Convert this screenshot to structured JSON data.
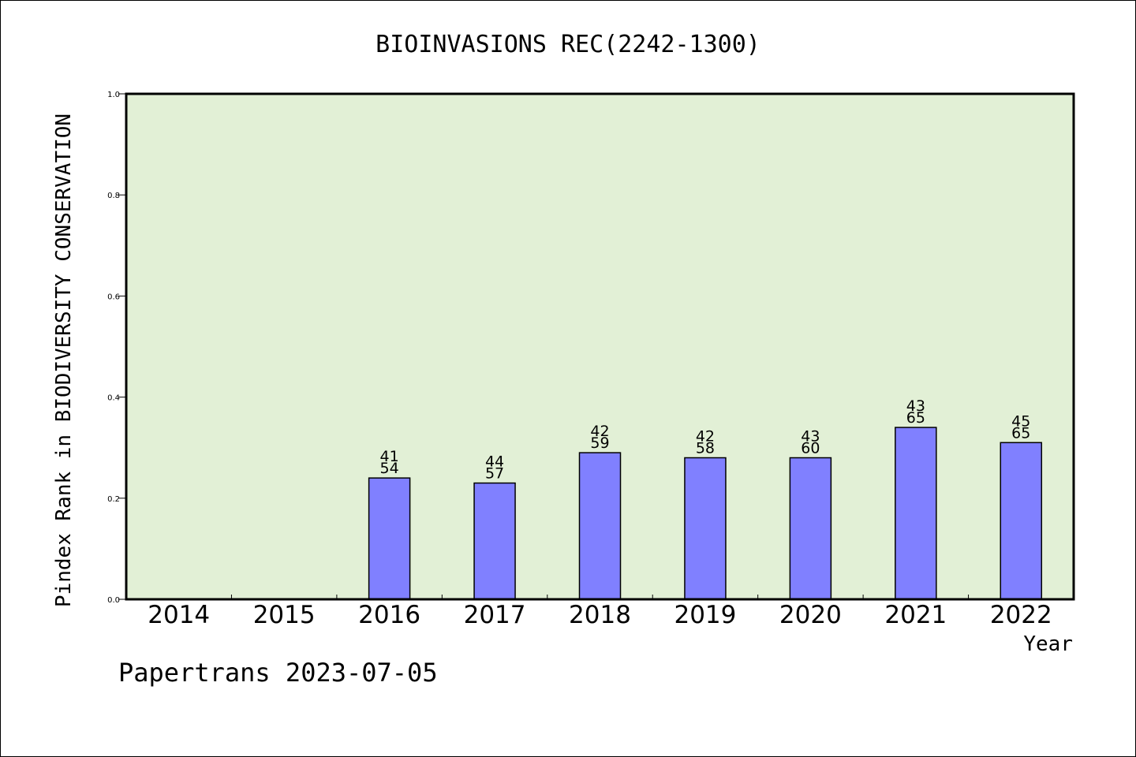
{
  "chart_data": {
    "type": "bar",
    "title": "BIOINVASIONS REC(2242-1300)",
    "xlabel": "Year",
    "ylabel": "Pindex Rank in BIODIVERSITY CONSERVATION",
    "categories": [
      "2014",
      "2015",
      "2016",
      "2017",
      "2018",
      "2019",
      "2020",
      "2021",
      "2022"
    ],
    "values": [
      null,
      null,
      0.24,
      0.23,
      0.29,
      0.28,
      0.28,
      0.34,
      0.31
    ],
    "rank_labels": [
      null,
      null,
      "41",
      "44",
      "42",
      "42",
      "43",
      "43",
      "45"
    ],
    "total_labels": [
      null,
      null,
      "54",
      "57",
      "59",
      "58",
      "60",
      "65",
      "65"
    ],
    "ylim": [
      0,
      1.0
    ],
    "yticks": [
      "0.0",
      "0.2",
      "0.4",
      "0.6",
      "0.8",
      "1.0"
    ],
    "grid": false,
    "colors": {
      "plot_background": "#e2f0d6",
      "bar_fill": "#8080ff",
      "bar_stroke": "#000000"
    }
  },
  "footer": "Papertrans 2023-07-05"
}
